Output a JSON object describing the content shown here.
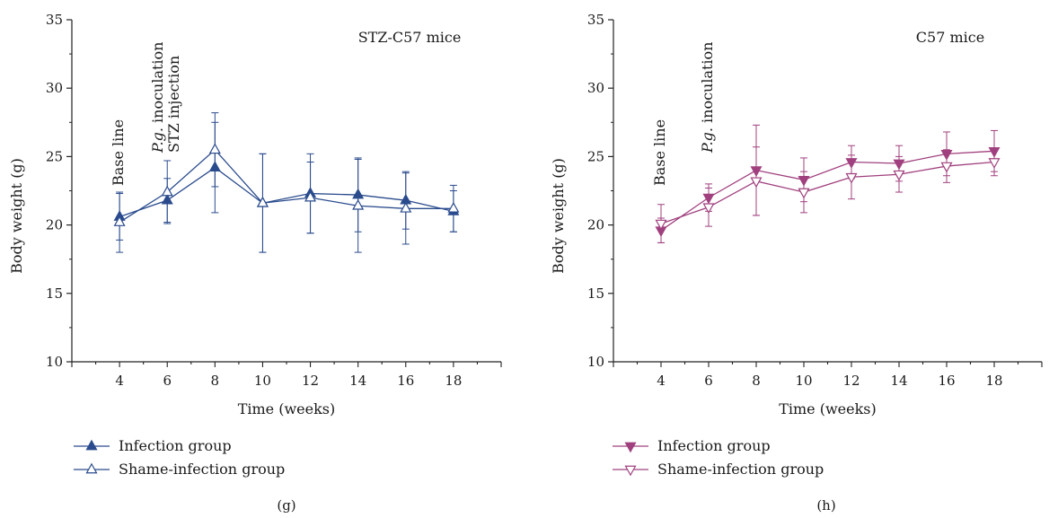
{
  "chart_data": [
    {
      "panel": "(g)",
      "type": "line",
      "annotation": "STZ-C57 mice",
      "xlabel": "Time (weeks)",
      "ylabel": "Body weight (g)",
      "xlim": [
        2,
        20
      ],
      "ylim": [
        10,
        35
      ],
      "x_ticks": [
        4,
        6,
        8,
        10,
        12,
        14,
        16,
        18
      ],
      "y_ticks": [
        10,
        15,
        20,
        25,
        30,
        35
      ],
      "event_labels": [
        {
          "x": 4,
          "lines": [
            "Base line"
          ]
        },
        {
          "x": 6,
          "lines": [
            "P.g. inoculation",
            "STZ injection"
          ]
        }
      ],
      "x": [
        4,
        6,
        8,
        10,
        12,
        14,
        16,
        18
      ],
      "series": [
        {
          "name": "Infection group",
          "marker": "triangle-up-filled",
          "color": "#2a4b8d",
          "values": [
            20.6,
            21.8,
            24.2,
            21.6,
            22.3,
            22.2,
            21.8,
            21.0
          ],
          "error": [
            1.7,
            1.6,
            3.3,
            3.6,
            2.9,
            2.7,
            2.1,
            1.5
          ]
        },
        {
          "name": "Shame-infection group",
          "marker": "triangle-up-open",
          "color": "#2a4b8d",
          "values": [
            20.2,
            22.4,
            25.5,
            21.6,
            22.0,
            21.4,
            21.2,
            21.2
          ],
          "error": [
            2.2,
            2.3,
            2.7,
            3.6,
            2.6,
            3.4,
            2.6,
            1.7
          ]
        }
      ],
      "legend_position": "bottom-left",
      "grid": false
    },
    {
      "panel": "(h)",
      "type": "line",
      "annotation": "C57 mice",
      "xlabel": "Time (weeks)",
      "ylabel": "Body weight (g)",
      "xlim": [
        2,
        20
      ],
      "ylim": [
        10,
        35
      ],
      "x_ticks": [
        4,
        6,
        8,
        10,
        12,
        14,
        16,
        18
      ],
      "y_ticks": [
        10,
        15,
        20,
        25,
        30,
        35
      ],
      "event_labels": [
        {
          "x": 4,
          "lines": [
            "Base line"
          ]
        },
        {
          "x": 6,
          "lines": [
            "P.g. inoculation"
          ]
        }
      ],
      "x": [
        4,
        6,
        8,
        10,
        12,
        14,
        16,
        18
      ],
      "series": [
        {
          "name": "Infection group",
          "marker": "triangle-down-filled",
          "color": "#a0407e",
          "values": [
            19.6,
            22.0,
            24.0,
            23.3,
            24.6,
            24.5,
            25.2,
            25.4
          ],
          "error": [
            0.9,
            1.0,
            3.3,
            1.6,
            1.2,
            1.3,
            1.6,
            1.5
          ]
        },
        {
          "name": "Shame-infection group",
          "marker": "triangle-down-open",
          "color": "#a0407e",
          "values": [
            20.1,
            21.3,
            23.2,
            22.4,
            23.5,
            23.7,
            24.3,
            24.6
          ],
          "error": [
            1.4,
            1.4,
            2.5,
            1.5,
            1.6,
            1.3,
            1.2,
            1.0
          ]
        }
      ],
      "legend_position": "bottom-left",
      "grid": false
    }
  ]
}
